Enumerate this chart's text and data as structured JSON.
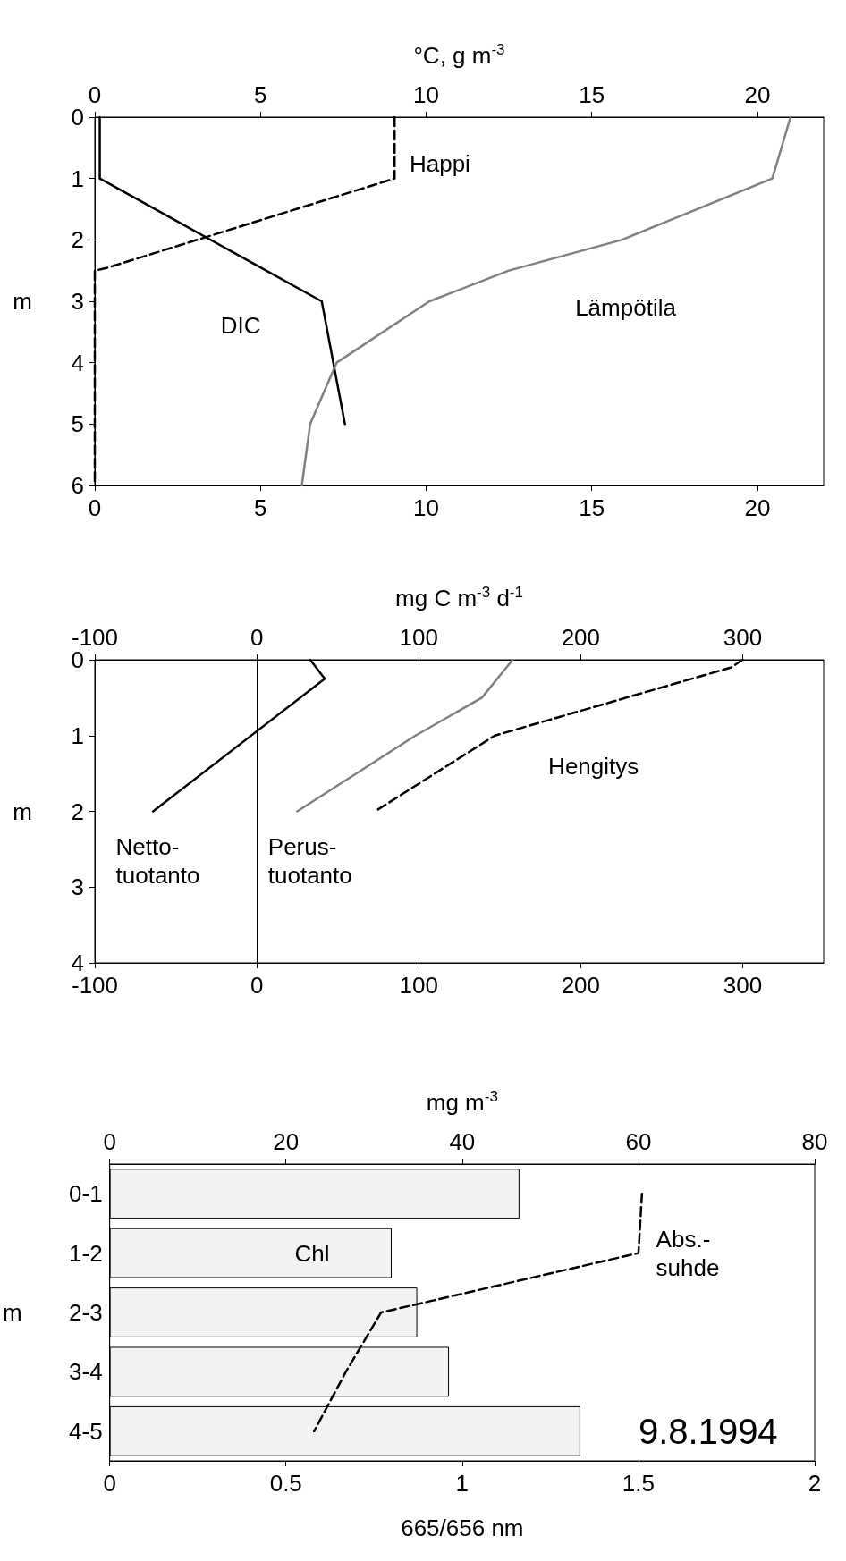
{
  "chart_data": [
    {
      "type": "line",
      "x2label": "°C, g m$^{-3}$",
      "ylabel": "m",
      "xlim": [
        0,
        22
      ],
      "xticks": [
        0,
        5,
        10,
        15,
        20
      ],
      "x2lim": [
        0,
        22
      ],
      "x2ticks": [
        0,
        5,
        10,
        15,
        20
      ],
      "ylim": [
        6,
        0
      ],
      "yticks": [
        0,
        1,
        2,
        3,
        4,
        5,
        6
      ],
      "grid": false,
      "marker": "none",
      "series": [
        {
          "name": "Happi",
          "color": "#000000",
          "line_style": "dashed",
          "x": [
            9.05,
            9.05,
            0.4,
            0,
            0
          ],
          "values": [
            0,
            1,
            2.45,
            2.5,
            6
          ]
        },
        {
          "name": "DIC",
          "color": "#000000",
          "line_style": "solid",
          "x": [
            0.15,
            0.15,
            6.85,
            7.55
          ],
          "values": [
            0,
            1,
            3,
            5
          ]
        },
        {
          "name": "Lämpötila",
          "color": "#808080",
          "line_style": "solid",
          "x": [
            21,
            20.45,
            15.9,
            12.5,
            10.1,
            7.3,
            6.5,
            6.25
          ],
          "values": [
            0,
            1,
            2,
            2.5,
            3,
            4,
            5,
            6
          ]
        }
      ]
    },
    {
      "type": "line",
      "x2label": "mg C m$^{-3}$ d$^{-1}$",
      "ylabel": "m",
      "xlim": [
        -100,
        350
      ],
      "xticks": [
        -100,
        0,
        100,
        200,
        300
      ],
      "x2lim": [
        -100,
        350
      ],
      "x2ticks": [
        -100,
        0,
        100,
        200,
        300
      ],
      "ylim": [
        4,
        0
      ],
      "yticks": [
        0,
        1,
        2,
        3,
        4
      ],
      "grid": false,
      "marker": "none",
      "ref_lines": [
        {
          "axis": "x",
          "value": 0,
          "color": "#000000"
        }
      ],
      "series": [
        {
          "name": "Netto-\ntuotanto",
          "color": "#000000",
          "line_style": "solid",
          "x": [
            33,
            42,
            -64
          ],
          "values": [
            0,
            0.25,
            2
          ]
        },
        {
          "name": "Perus-\ntuotanto",
          "color": "#808080",
          "line_style": "solid",
          "x": [
            158,
            139,
            98,
            25
          ],
          "values": [
            0,
            0.5,
            1,
            2
          ]
        },
        {
          "name": "Hengitys",
          "color": "#000000",
          "line_style": "dashed",
          "x": [
            300,
            293,
            147,
            73
          ],
          "values": [
            0,
            0.1,
            1,
            2
          ]
        }
      ]
    },
    {
      "type": "bar",
      "orientation": "horizontal",
      "categories": [
        "0-1",
        "1-2",
        "2-3",
        "3-4",
        "4-5"
      ],
      "ylabel": "m",
      "xlabel": "665/656 nm",
      "xlim": [
        0,
        2
      ],
      "xticks": [
        0,
        0.5,
        1,
        1.5,
        2
      ],
      "x2label": "mg m$^{-3}$",
      "x2lim": [
        0,
        80
      ],
      "x2ticks": [
        0,
        20,
        40,
        60,
        80
      ],
      "grid": false,
      "marker": "none",
      "annotations": [
        "9.8.1994"
      ],
      "series": [
        {
          "name": "Chl",
          "type": "bar",
          "axis": "x2",
          "color": "#f2f2f2",
          "values": [
            46.5,
            32,
            34.9,
            38.5,
            53.4
          ]
        },
        {
          "name": "Abs.-\nsuhde",
          "type": "line",
          "color": "#000000",
          "line_style": "dashed",
          "values": [
            1.51,
            1.5,
            0.77,
            0.67,
            0.58
          ]
        }
      ]
    }
  ]
}
